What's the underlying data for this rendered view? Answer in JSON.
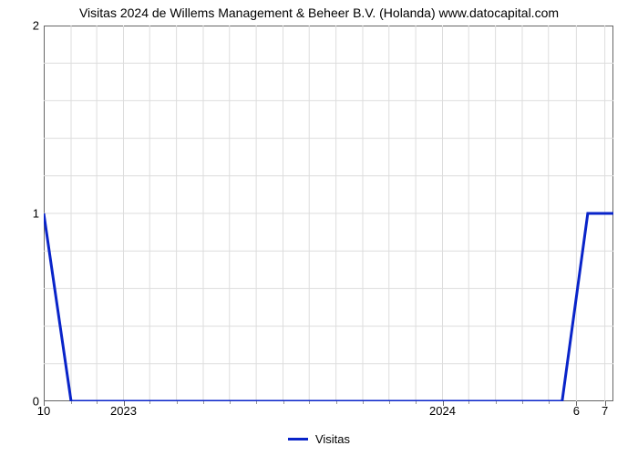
{
  "chart": {
    "type": "line",
    "title": "Visitas 2024 de Willems Management & Beheer B.V. (Holanda) www.datocapital.com",
    "title_fontsize": 14,
    "title_color": "#000000",
    "background_color": "#ffffff",
    "plot_border_color": "#666666",
    "grid_color": "#dddddd",
    "line_color": "#0924c9",
    "line_width": 3,
    "ylim": [
      0,
      2
    ],
    "yticks": [
      0,
      1,
      2
    ],
    "ytick_labels": [
      "0",
      "1",
      "2"
    ],
    "y_minor_grid_count": 9,
    "x_major_labels": [
      "2023",
      "2024"
    ],
    "x_major_positions_pct": [
      14.0,
      70.0
    ],
    "x_extra_left_label": "10",
    "x_extra_right_labels": [
      "6",
      "7"
    ],
    "x_extra_right_positions_pct": [
      93.5,
      98.5
    ],
    "x_minor_tick_positions_pct": [
      4.8,
      9.3,
      18.6,
      23.3,
      28.0,
      32.6,
      37.3,
      42.0,
      46.6,
      51.3,
      56.0,
      60.6,
      65.3,
      74.6,
      79.3,
      84.0,
      88.6
    ],
    "grid_v_positions_pct": [
      4.8,
      9.3,
      14.0,
      18.6,
      23.3,
      28.0,
      32.6,
      37.3,
      42.0,
      46.6,
      51.3,
      56.0,
      60.6,
      65.3,
      70.0,
      74.6,
      79.3,
      84.0,
      88.6,
      93.5,
      98.5
    ],
    "series": {
      "name": "Visitas",
      "x_pct": [
        0,
        4.8,
        91.0,
        95.5,
        100
      ],
      "y_value": [
        1,
        0,
        0,
        1,
        1
      ]
    },
    "legend": {
      "label": "Visitas",
      "swatch_color": "#0924c9"
    }
  }
}
